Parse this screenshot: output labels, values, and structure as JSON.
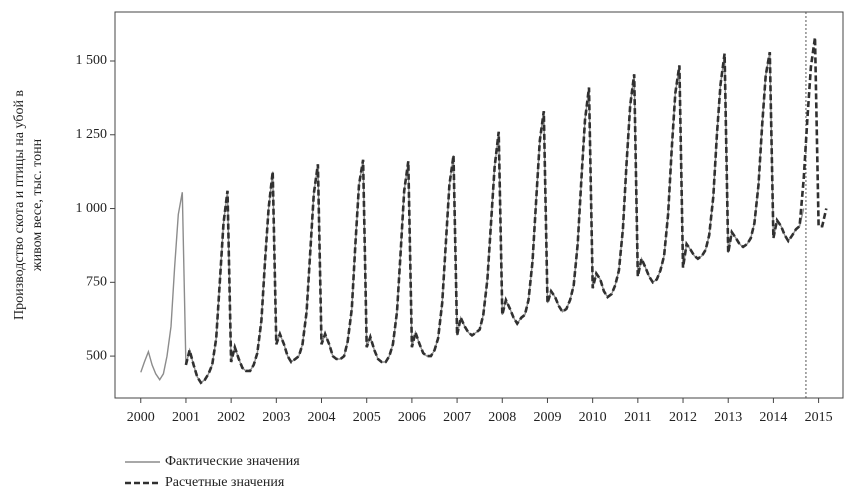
{
  "chart_data": {
    "type": "line",
    "y_label": [
      "Производство скота и птицы на убой в",
      "живом весе, тыс. тонн"
    ],
    "x": [
      2000,
      2000.08,
      2000.17,
      2000.25,
      2000.33,
      2000.42,
      2000.5,
      2000.58,
      2000.67,
      2000.75,
      2000.83,
      2000.92,
      2001,
      2001.08,
      2001.17,
      2001.25,
      2001.33,
      2001.42,
      2001.5,
      2001.58,
      2001.67,
      2001.75,
      2001.83,
      2001.92,
      2002,
      2002.08,
      2002.17,
      2002.25,
      2002.33,
      2002.42,
      2002.5,
      2002.58,
      2002.67,
      2002.75,
      2002.83,
      2002.92,
      2003,
      2003.08,
      2003.17,
      2003.25,
      2003.33,
      2003.42,
      2003.5,
      2003.58,
      2003.67,
      2003.75,
      2003.83,
      2003.92,
      2004,
      2004.08,
      2004.17,
      2004.25,
      2004.33,
      2004.42,
      2004.5,
      2004.58,
      2004.67,
      2004.75,
      2004.83,
      2004.92,
      2005,
      2005.08,
      2005.17,
      2005.25,
      2005.33,
      2005.42,
      2005.5,
      2005.58,
      2005.67,
      2005.75,
      2005.83,
      2005.92,
      2006,
      2006.08,
      2006.17,
      2006.25,
      2006.33,
      2006.42,
      2006.5,
      2006.58,
      2006.67,
      2006.75,
      2006.83,
      2006.92,
      2007,
      2007.08,
      2007.17,
      2007.25,
      2007.33,
      2007.42,
      2007.5,
      2007.58,
      2007.67,
      2007.75,
      2007.83,
      2007.92,
      2008,
      2008.08,
      2008.17,
      2008.25,
      2008.33,
      2008.42,
      2008.5,
      2008.58,
      2008.67,
      2008.75,
      2008.83,
      2008.92,
      2009,
      2009.08,
      2009.17,
      2009.25,
      2009.33,
      2009.42,
      2009.5,
      2009.58,
      2009.67,
      2009.75,
      2009.83,
      2009.92,
      2010,
      2010.08,
      2010.17,
      2010.25,
      2010.33,
      2010.42,
      2010.5,
      2010.58,
      2010.67,
      2010.75,
      2010.83,
      2010.92,
      2011,
      2011.08,
      2011.17,
      2011.25,
      2011.33,
      2011.42,
      2011.5,
      2011.58,
      2011.67,
      2011.75,
      2011.83,
      2011.92,
      2012,
      2012.08,
      2012.17,
      2012.25,
      2012.33,
      2012.42,
      2012.5,
      2012.58,
      2012.67,
      2012.75,
      2012.83,
      2012.92,
      2013,
      2013.08,
      2013.17,
      2013.25,
      2013.33,
      2013.42,
      2013.5,
      2013.58,
      2013.67,
      2013.75,
      2013.83,
      2013.92,
      2014,
      2014.08,
      2014.17,
      2014.25,
      2014.33,
      2014.42,
      2014.5,
      2014.58,
      2014.67,
      2014.75,
      2014.83,
      2014.92,
      2015,
      2015.08,
      2015.17
    ],
    "series": [
      {
        "name": "Фактические значения",
        "color": "#8c8c8c",
        "style": "solid",
        "values": [
          445,
          480,
          515,
          470,
          440,
          420,
          440,
          500,
          600,
          800,
          980,
          1055,
          470,
          520,
          470,
          430,
          410,
          420,
          440,
          470,
          560,
          750,
          950,
          1060,
          480,
          530,
          490,
          460,
          450,
          450,
          470,
          510,
          620,
          820,
          1000,
          1125,
          540,
          575,
          540,
          500,
          480,
          490,
          500,
          540,
          650,
          850,
          1050,
          1150,
          540,
          575,
          540,
          500,
          490,
          490,
          500,
          550,
          660,
          880,
          1080,
          1165,
          530,
          565,
          520,
          490,
          480,
          480,
          500,
          540,
          650,
          850,
          1060,
          1160,
          530,
          580,
          540,
          510,
          500,
          500,
          520,
          560,
          680,
          880,
          1080,
          1180,
          570,
          630,
          600,
          580,
          570,
          580,
          590,
          640,
          760,
          950,
          1140,
          1260,
          640,
          690,
          660,
          630,
          610,
          630,
          640,
          690,
          820,
          1030,
          1230,
          1330,
          680,
          720,
          700,
          670,
          650,
          660,
          690,
          740,
          880,
          1100,
          1300,
          1410,
          730,
          780,
          760,
          720,
          700,
          710,
          740,
          790,
          930,
          1150,
          1350,
          1455,
          770,
          830,
          800,
          770,
          750,
          760,
          790,
          840,
          980,
          1200,
          1390,
          1485,
          800,
          880,
          860,
          840,
          830,
          840,
          860,
          910,
          1040,
          1250,
          1420,
          1525,
          850,
          920,
          900,
          880,
          870,
          880,
          900,
          950,
          1080,
          1280,
          1450,
          1530,
          900,
          960,
          940,
          910,
          890,
          910,
          930,
          940,
          1000,
          null,
          null,
          null,
          null,
          null,
          null
        ]
      },
      {
        "name": "Расчетные значения",
        "color": "#303030",
        "style": "dashed",
        "values": [
          null,
          null,
          null,
          null,
          null,
          null,
          null,
          null,
          null,
          null,
          null,
          null,
          470,
          520,
          470,
          430,
          410,
          420,
          440,
          470,
          560,
          750,
          950,
          1060,
          480,
          530,
          490,
          460,
          450,
          450,
          470,
          510,
          620,
          820,
          1000,
          1125,
          540,
          575,
          540,
          500,
          480,
          490,
          500,
          540,
          650,
          850,
          1050,
          1150,
          540,
          575,
          540,
          500,
          490,
          490,
          500,
          550,
          660,
          880,
          1080,
          1165,
          530,
          565,
          520,
          490,
          480,
          480,
          500,
          540,
          650,
          850,
          1060,
          1160,
          530,
          580,
          540,
          510,
          500,
          500,
          520,
          560,
          680,
          880,
          1080,
          1180,
          570,
          630,
          600,
          580,
          570,
          580,
          590,
          640,
          760,
          950,
          1140,
          1260,
          640,
          690,
          660,
          630,
          610,
          630,
          640,
          690,
          820,
          1030,
          1230,
          1330,
          680,
          720,
          700,
          670,
          650,
          660,
          690,
          740,
          880,
          1100,
          1300,
          1410,
          730,
          780,
          760,
          720,
          700,
          710,
          740,
          790,
          930,
          1150,
          1350,
          1455,
          770,
          830,
          800,
          770,
          750,
          760,
          790,
          840,
          980,
          1200,
          1390,
          1485,
          800,
          880,
          860,
          840,
          830,
          840,
          860,
          910,
          1040,
          1250,
          1420,
          1525,
          850,
          920,
          900,
          880,
          870,
          880,
          900,
          950,
          1080,
          1280,
          1450,
          1530,
          900,
          960,
          940,
          910,
          890,
          910,
          930,
          940,
          1100,
          1300,
          1480,
          1580,
          940,
          940,
          1000
        ]
      }
    ],
    "vline": 2014.72,
    "xlim": [
      1999.43,
      2015.54
    ],
    "ylim": [
      358,
      1666
    ],
    "xticks": [
      2000,
      2001,
      2002,
      2003,
      2004,
      2005,
      2006,
      2007,
      2008,
      2009,
      2010,
      2011,
      2012,
      2013,
      2014,
      2015
    ],
    "yticks": [
      500,
      750,
      {
        "value": 1000,
        "label": "1 000"
      },
      {
        "value": 1250,
        "label": "1 250"
      },
      {
        "value": 1500,
        "label": "1 500"
      }
    ]
  }
}
